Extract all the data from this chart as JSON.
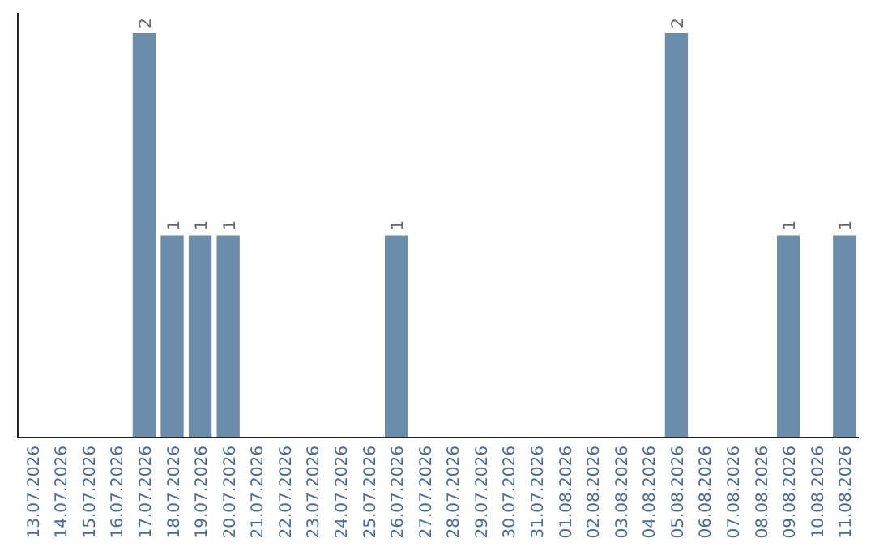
{
  "chart_data": {
    "type": "bar",
    "categories": [
      "13.07.2026",
      "14.07.2026",
      "15.07.2026",
      "16.07.2026",
      "17.07.2026",
      "18.07.2026",
      "19.07.2026",
      "20.07.2026",
      "21.07.2026",
      "22.07.2026",
      "23.07.2026",
      "24.07.2026",
      "25.07.2026",
      "26.07.2026",
      "27.07.2026",
      "28.07.2026",
      "29.07.2026",
      "30.07.2026",
      "31.07.2026",
      "01.08.2026",
      "02.08.2026",
      "03.08.2026",
      "04.08.2026",
      "05.08.2026",
      "06.08.2026",
      "07.08.2026",
      "08.08.2026",
      "09.08.2026",
      "10.08.2026",
      "11.08.2026"
    ],
    "values": [
      0,
      0,
      0,
      0,
      2,
      1,
      1,
      1,
      0,
      0,
      0,
      0,
      0,
      1,
      0,
      0,
      0,
      0,
      0,
      0,
      0,
      0,
      0,
      2,
      0,
      0,
      0,
      1,
      0,
      1
    ],
    "value_labels": [
      null,
      null,
      null,
      null,
      "2",
      "1",
      "1",
      "1",
      null,
      null,
      null,
      null,
      null,
      "1",
      null,
      null,
      null,
      null,
      null,
      null,
      null,
      null,
      null,
      "2",
      null,
      null,
      null,
      "1",
      null,
      "1"
    ],
    "color": "#6b8cab",
    "ylim": [
      0,
      2.1
    ],
    "tick_labels": "x"
  }
}
